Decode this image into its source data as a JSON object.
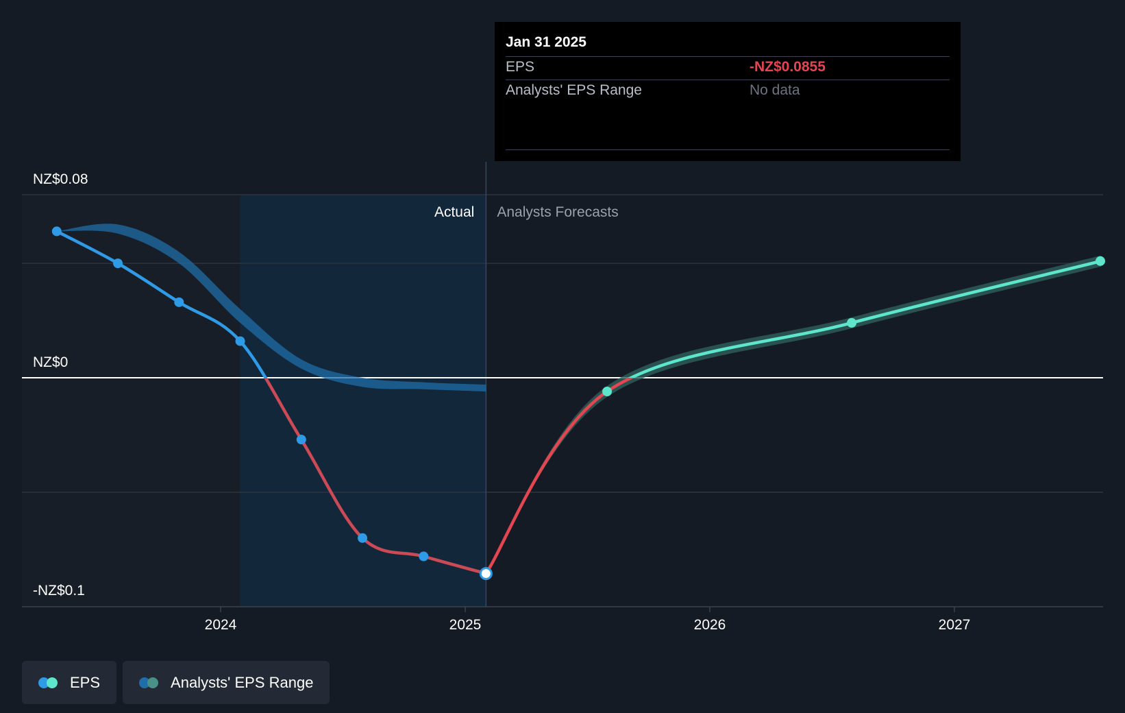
{
  "chart_data": {
    "type": "line",
    "title": "",
    "xlabel": "",
    "ylabel": "",
    "x_ticks": [
      "2024",
      "2025",
      "2026",
      "2027"
    ],
    "y_ticks": [
      "NZ$0.08",
      "NZ$0",
      "-NZ$0.1"
    ],
    "ylim": [
      -0.1,
      0.08
    ],
    "xlim": [
      2023.3,
      2027.6
    ],
    "sections": {
      "actual": "Actual",
      "forecast": "Analysts Forecasts"
    },
    "divider_x": 2025.085,
    "series": [
      {
        "name": "EPS",
        "points": [
          {
            "x": 2023.33,
            "y": 0.064
          },
          {
            "x": 2023.58,
            "y": 0.05
          },
          {
            "x": 2023.83,
            "y": 0.033
          },
          {
            "x": 2024.08,
            "y": 0.016
          },
          {
            "x": 2024.33,
            "y": -0.027
          },
          {
            "x": 2024.58,
            "y": -0.07
          },
          {
            "x": 2024.83,
            "y": -0.078
          },
          {
            "x": 2025.085,
            "y": -0.0855
          }
        ]
      },
      {
        "name": "EPS forecast",
        "points": [
          {
            "x": 2025.085,
            "y": -0.0855
          },
          {
            "x": 2025.58,
            "y": -0.006
          },
          {
            "x": 2026.58,
            "y": 0.024
          },
          {
            "x": 2027.6,
            "y": 0.051
          }
        ]
      }
    ],
    "range_band": {
      "name": "Analysts' EPS Range",
      "upper": [
        {
          "x": 2023.33,
          "y": 0.064
        },
        {
          "x": 2023.58,
          "y": 0.067
        },
        {
          "x": 2023.83,
          "y": 0.055
        },
        {
          "x": 2024.08,
          "y": 0.03
        },
        {
          "x": 2024.33,
          "y": 0.008
        },
        {
          "x": 2024.58,
          "y": 0.0
        },
        {
          "x": 2024.83,
          "y": -0.002
        },
        {
          "x": 2025.085,
          "y": -0.003
        }
      ],
      "lower": [
        {
          "x": 2023.33,
          "y": 0.064
        },
        {
          "x": 2023.58,
          "y": 0.063
        },
        {
          "x": 2023.83,
          "y": 0.05
        },
        {
          "x": 2024.08,
          "y": 0.024
        },
        {
          "x": 2024.33,
          "y": 0.004
        },
        {
          "x": 2024.58,
          "y": -0.004
        },
        {
          "x": 2024.83,
          "y": -0.005
        },
        {
          "x": 2025.085,
          "y": -0.006
        }
      ]
    },
    "colors": {
      "eps_positive": "#2f9be6",
      "eps_negative": "#e24650",
      "forecast_line": "#5ee6cc",
      "range_band": "#1f6ea8",
      "forecast_band": "#2e5f5b",
      "actual_shade": "#13273b",
      "grid": "#2c343f",
      "zero_line": "#ffffff"
    }
  },
  "tooltip": {
    "date": "Jan 31 2025",
    "rows": [
      {
        "label": "EPS",
        "value": "-NZ$0.0855",
        "color": "#e24650"
      },
      {
        "label": "Analysts' EPS Range",
        "value": "No data",
        "color": "#6d7480"
      }
    ]
  },
  "legend": {
    "items": [
      {
        "label": "EPS",
        "dot1": "#2f9be6",
        "dot2": "#5ee6cc"
      },
      {
        "label": "Analysts' EPS Range",
        "dot1": "#1f6ea8",
        "dot2": "#4a8f88"
      }
    ]
  }
}
